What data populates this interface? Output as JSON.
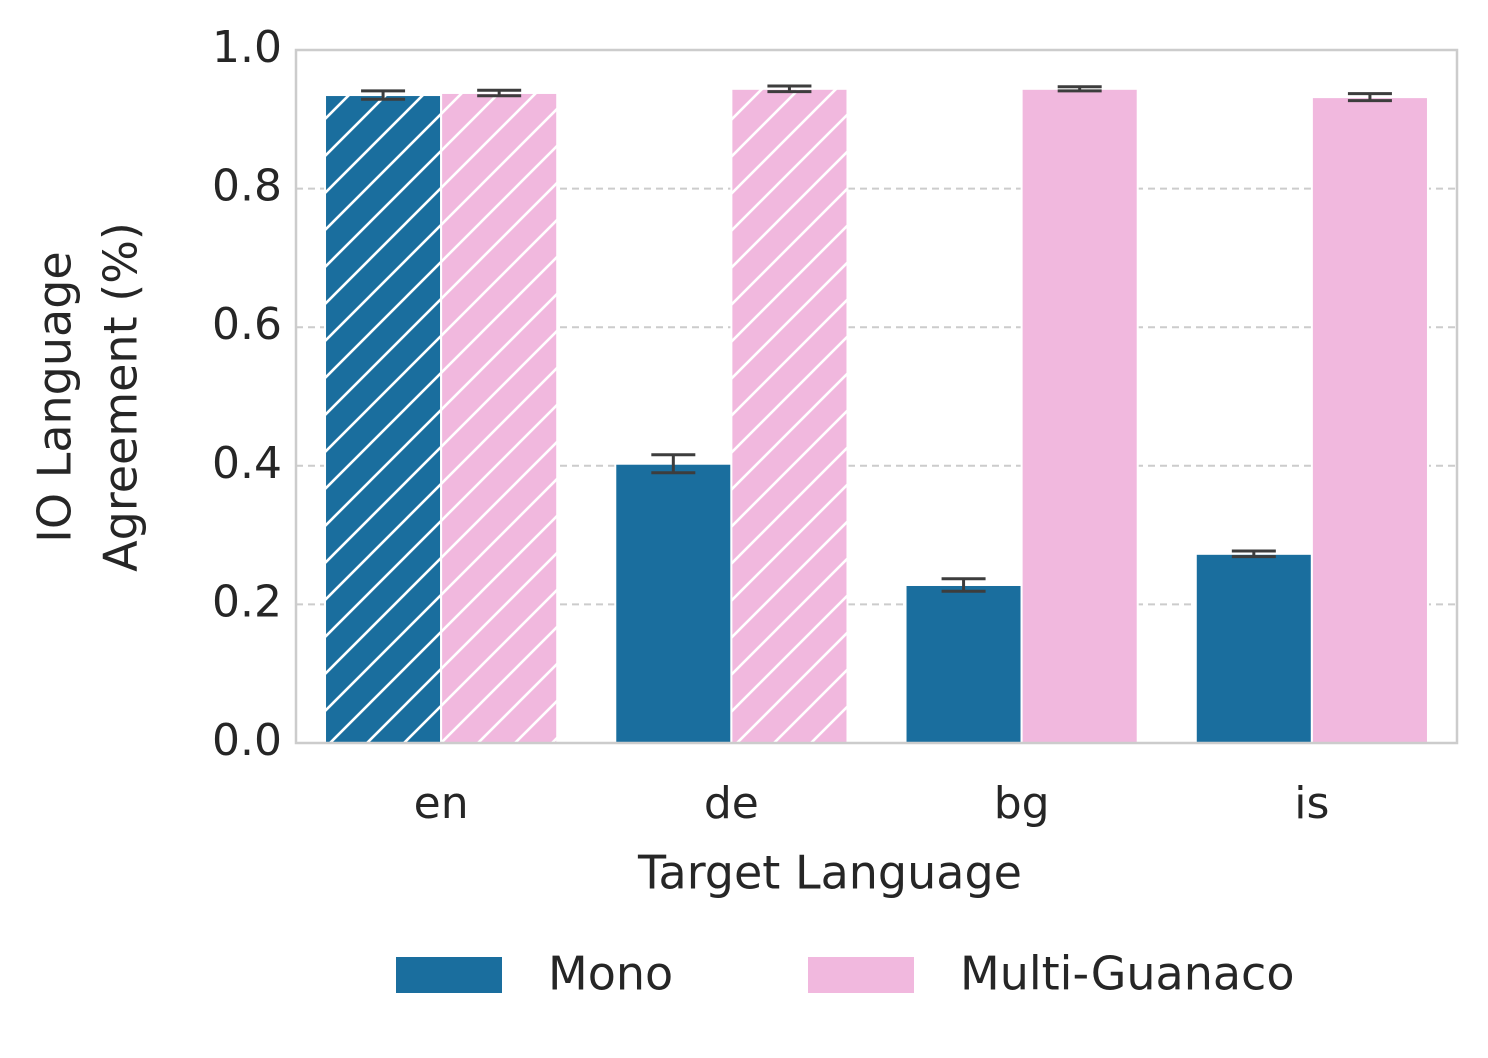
{
  "chart_data": {
    "type": "bar",
    "ylabel": [
      "IO Language",
      "Agreement (%)"
    ],
    "xlabel": "Target Language",
    "categories": [
      "en",
      "de",
      "bg",
      "is"
    ],
    "series": [
      {
        "name": "Mono",
        "color": "#1a6e9e",
        "values": [
          0.935,
          0.403,
          0.228,
          0.273
        ],
        "errors": [
          0.006,
          0.013,
          0.009,
          0.004
        ],
        "hatch": [
          true,
          false,
          false,
          false
        ]
      },
      {
        "name": "Multi-Guanaco",
        "color": "#f1b8de",
        "values": [
          0.938,
          0.944,
          0.944,
          0.932
        ],
        "errors": [
          0.004,
          0.004,
          0.003,
          0.005
        ],
        "hatch": [
          true,
          true,
          false,
          false
        ]
      }
    ],
    "ylim": [
      0,
      1
    ],
    "yticks": [
      {
        "value": 0,
        "label": "0.0"
      },
      0.2,
      0.4,
      0.6,
      0.8,
      {
        "value": 1,
        "label": "1.0"
      }
    ],
    "grid": true,
    "legend": "bottom"
  }
}
